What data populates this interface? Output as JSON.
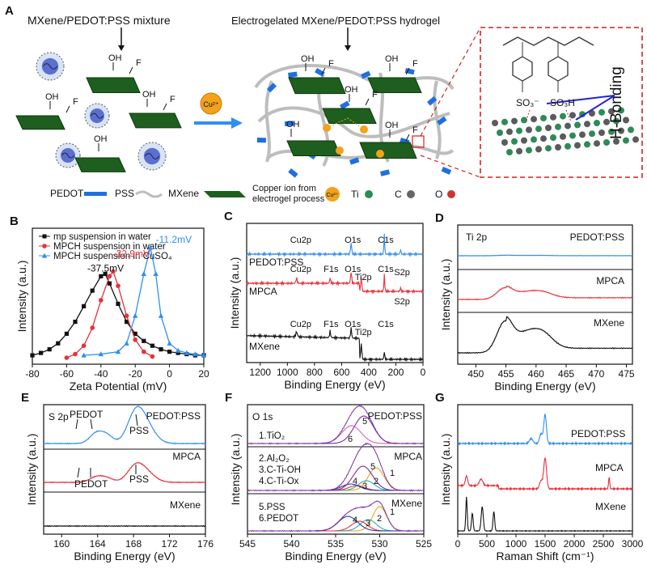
{
  "panelA": {
    "letter": "A",
    "mixture_title": "MXene/PEDOT:PSS mixture",
    "hydrogel_title": "Electrogelated MXene/PEDOT:PSS hydrogel",
    "cu_label": "Cu²⁺",
    "hbond_label": "H-Bonding",
    "so3_minus": "SO₃⁻",
    "so3h": "SO₃H",
    "oh": "OH",
    "f": "F",
    "legend": {
      "pedot": "PEDOT",
      "pss": "PSS",
      "mxene": "MXene",
      "copper_line1": "Copper ion from",
      "copper_line2": "electrogel process",
      "ti": "Ti",
      "c": "C",
      "o": "O"
    },
    "colors": {
      "sheet": "#1e5e1e",
      "pedot": "#1f6fe0",
      "pss": "#bdbdbd",
      "cu": "#f2a21b",
      "ti": "#2e8b57",
      "c": "#666666",
      "o": "#cc3333",
      "dash": "#d62020"
    }
  },
  "chart_data": [
    {
      "id": "B",
      "type": "line",
      "letter": "B",
      "xlabel": "Zeta Potential (mV)",
      "ylabel": "Intensity (a.u.)",
      "xlim": [
        -80,
        20
      ],
      "xticks": [
        "-80",
        "-60",
        "-40",
        "-20",
        "0",
        "20"
      ],
      "legend_position": "top-left",
      "series": [
        {
          "name": "mp suspension in water",
          "color": "#111111",
          "marker": "square",
          "x": [
            -80,
            -75,
            -70,
            -65,
            -60,
            -55,
            -50,
            -45,
            -40,
            -37.5,
            -35,
            -30,
            -25,
            -20,
            -15,
            -10,
            -5,
            0,
            5,
            10,
            15,
            20
          ],
          "y": [
            0.02,
            0.04,
            0.07,
            0.12,
            0.2,
            0.3,
            0.43,
            0.56,
            0.68,
            0.7,
            0.62,
            0.45,
            0.3,
            0.2,
            0.14,
            0.1,
            0.07,
            0.05,
            0.04,
            0.03,
            0.02,
            0.02
          ]
        },
        {
          "name": "MPCH suspension in water",
          "color": "#e8303a",
          "marker": "circle",
          "x": [
            -60,
            -55,
            -50,
            -45,
            -40,
            -35,
            -32.9,
            -30,
            -25,
            -20,
            -15,
            -10
          ],
          "y": [
            0.0,
            0.03,
            0.1,
            0.25,
            0.48,
            0.68,
            0.72,
            0.6,
            0.35,
            0.15,
            0.05,
            0.01
          ]
        },
        {
          "name": "MPCH suspension in CuSO₄",
          "color": "#2f8ff0",
          "marker": "triangle",
          "x": [
            -50,
            -40,
            -30,
            -25,
            -20,
            -15,
            -11.2,
            -8,
            -5,
            0,
            5,
            10,
            15,
            20
          ],
          "y": [
            0.02,
            0.03,
            0.05,
            0.12,
            0.35,
            0.7,
            0.92,
            0.7,
            0.35,
            0.12,
            0.06,
            0.04,
            0.03,
            0.02
          ]
        }
      ],
      "annotations": [
        {
          "text": "-37.5mV",
          "x": -48,
          "y": 0.72,
          "color": "#111111"
        },
        {
          "text": "-32.9mV",
          "x": -33,
          "y": 0.84,
          "color": "#e8303a"
        },
        {
          "text": "-11.2mV",
          "x": -8,
          "y": 0.96,
          "color": "#2f8ff0"
        }
      ]
    },
    {
      "id": "C",
      "type": "line",
      "letter": "C",
      "xlabel": "Binding Energy (eV)",
      "ylabel": "Intensity (a.u.)",
      "xlim": [
        1300,
        0
      ],
      "xticks": [
        "1200",
        "1000",
        "800",
        "600",
        "400",
        "200",
        "0"
      ],
      "series": [
        {
          "name": "PEDOT:PSS",
          "color": "#2f8ff0",
          "offset": 2.0
        },
        {
          "name": "MPCA",
          "color": "#e8303a",
          "offset": 1.1
        },
        {
          "name": "MXene",
          "color": "#111111",
          "offset": 0.15
        }
      ],
      "peaks": [
        {
          "series": "PEDOT:PSS",
          "labels": [
            "Cu2p",
            "O1s",
            "C1s",
            "S2p"
          ]
        },
        {
          "series": "MPCA",
          "labels": [
            "Cu2p",
            "F1s",
            "O1s",
            "Ti2p",
            "C1s",
            "S2p"
          ]
        },
        {
          "series": "MXene",
          "labels": [
            "Cu2p",
            "F1s",
            "O1s",
            "Ti2p",
            "C1s"
          ]
        }
      ]
    },
    {
      "id": "D",
      "type": "line",
      "letter": "D",
      "xlabel": "Binding Energy (eV)",
      "ylabel": "Intensity (a.u.)",
      "xlim": [
        447,
        476
      ],
      "xticks": [
        "450",
        "455",
        "460",
        "465",
        "470",
        "475"
      ],
      "subtitle": "Ti 2p",
      "series": [
        {
          "name": "PEDOT:PSS",
          "color": "#2f8ff0"
        },
        {
          "name": "MPCA",
          "color": "#e8303a"
        },
        {
          "name": "MXene",
          "color": "#111111"
        }
      ]
    },
    {
      "id": "E",
      "type": "line",
      "letter": "E",
      "xlabel": "Binding Energy (eV)",
      "ylabel": "Intensity (a.u.)",
      "xlim": [
        158,
        176
      ],
      "xticks": [
        "160",
        "164",
        "168",
        "172",
        "176"
      ],
      "subtitle": "S 2p",
      "series": [
        {
          "name": "PEDOT:PSS",
          "color": "#2f8ff0"
        },
        {
          "name": "MPCA",
          "color": "#e8303a"
        },
        {
          "name": "MXene",
          "color": "#111111"
        }
      ],
      "peak_labels": [
        "PEDOT",
        "PSS",
        "PEDOT",
        "PSS"
      ]
    },
    {
      "id": "F",
      "type": "line",
      "letter": "F",
      "xlabel": "Binding Energy (eV)",
      "ylabel": "Intensity (a.u.)",
      "xlim": [
        545,
        525
      ],
      "xticks": [
        "545",
        "540",
        "535",
        "530",
        "525"
      ],
      "subtitle": "O 1s",
      "series": [
        {
          "name": "PEDOT:PSS",
          "color": "#111111"
        },
        {
          "name": "MPCA",
          "color": "#111111"
        },
        {
          "name": "MXene",
          "color": "#111111"
        }
      ],
      "components": [
        "1.TiO₂",
        "2.Al₂O₂",
        "3.C-Ti-OH",
        "4.C-Ti-Ox",
        "5.PSS",
        "6.PEDOT"
      ],
      "component_colors": [
        "#f2a21b",
        "#2aa9b5",
        "#e8303a",
        "#1f3fa0",
        "#7a2ca0",
        "#e45db0"
      ]
    },
    {
      "id": "G",
      "type": "line",
      "letter": "G",
      "xlabel": "Raman Shift (cm⁻¹)",
      "ylabel": "Intensity (a.u.)",
      "xlim": [
        0,
        3000
      ],
      "xticks": [
        "0",
        "500",
        "1000",
        "1500",
        "2000",
        "2500",
        "3000"
      ],
      "series": [
        {
          "name": "PEDOT:PSS",
          "color": "#2f8ff0"
        },
        {
          "name": "MPCA",
          "color": "#e8303a"
        },
        {
          "name": "MXene",
          "color": "#111111"
        }
      ]
    }
  ]
}
